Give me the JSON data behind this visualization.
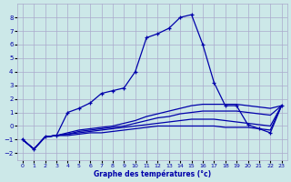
{
  "xlabel": "Graphe des températures (°c)",
  "bg_color": "#cce8e8",
  "grid_color": "#aaaacc",
  "line_color": "#0000aa",
  "x_hours": [
    0,
    1,
    2,
    3,
    4,
    5,
    6,
    7,
    8,
    9,
    10,
    11,
    12,
    13,
    14,
    15,
    16,
    17,
    18,
    19,
    20,
    21,
    22,
    23
  ],
  "temp_main": [
    -1.0,
    -1.7,
    -0.8,
    -0.7,
    1.0,
    1.3,
    1.7,
    2.4,
    2.6,
    2.8,
    4.0,
    6.5,
    6.8,
    7.2,
    8.0,
    8.2,
    6.0,
    3.2,
    1.5,
    1.5,
    0.1,
    -0.2,
    -0.5,
    1.5
  ],
  "temp_line2": [
    -1.0,
    -1.7,
    -0.8,
    -0.7,
    -0.5,
    -0.3,
    -0.2,
    -0.1,
    0.0,
    0.2,
    0.4,
    0.7,
    0.9,
    1.1,
    1.3,
    1.5,
    1.6,
    1.6,
    1.6,
    1.6,
    1.5,
    1.4,
    1.3,
    1.5
  ],
  "temp_line3": [
    -1.0,
    -1.7,
    -0.8,
    -0.7,
    -0.6,
    -0.4,
    -0.3,
    -0.2,
    -0.1,
    0.0,
    0.2,
    0.4,
    0.6,
    0.7,
    0.9,
    1.0,
    1.1,
    1.1,
    1.1,
    1.1,
    1.0,
    0.9,
    0.8,
    1.5
  ],
  "temp_line4": [
    -1.0,
    -1.7,
    -0.8,
    -0.7,
    -0.6,
    -0.5,
    -0.4,
    -0.3,
    -0.2,
    -0.1,
    0.0,
    0.1,
    0.2,
    0.3,
    0.4,
    0.5,
    0.5,
    0.5,
    0.4,
    0.3,
    0.2,
    0.1,
    0.0,
    1.5
  ],
  "temp_line5": [
    -1.0,
    -1.7,
    -0.8,
    -0.7,
    -0.7,
    -0.6,
    -0.5,
    -0.5,
    -0.4,
    -0.3,
    -0.2,
    -0.1,
    0.0,
    0.0,
    0.0,
    0.0,
    0.0,
    0.0,
    -0.1,
    -0.1,
    -0.1,
    -0.2,
    -0.3,
    1.5
  ],
  "ylim": [
    -2.5,
    9.0
  ],
  "yticks": [
    -2,
    -1,
    0,
    1,
    2,
    3,
    4,
    5,
    6,
    7,
    8
  ],
  "xticks": [
    0,
    1,
    2,
    3,
    4,
    5,
    6,
    7,
    8,
    9,
    10,
    11,
    12,
    13,
    14,
    15,
    16,
    17,
    18,
    19,
    20,
    21,
    22,
    23
  ]
}
